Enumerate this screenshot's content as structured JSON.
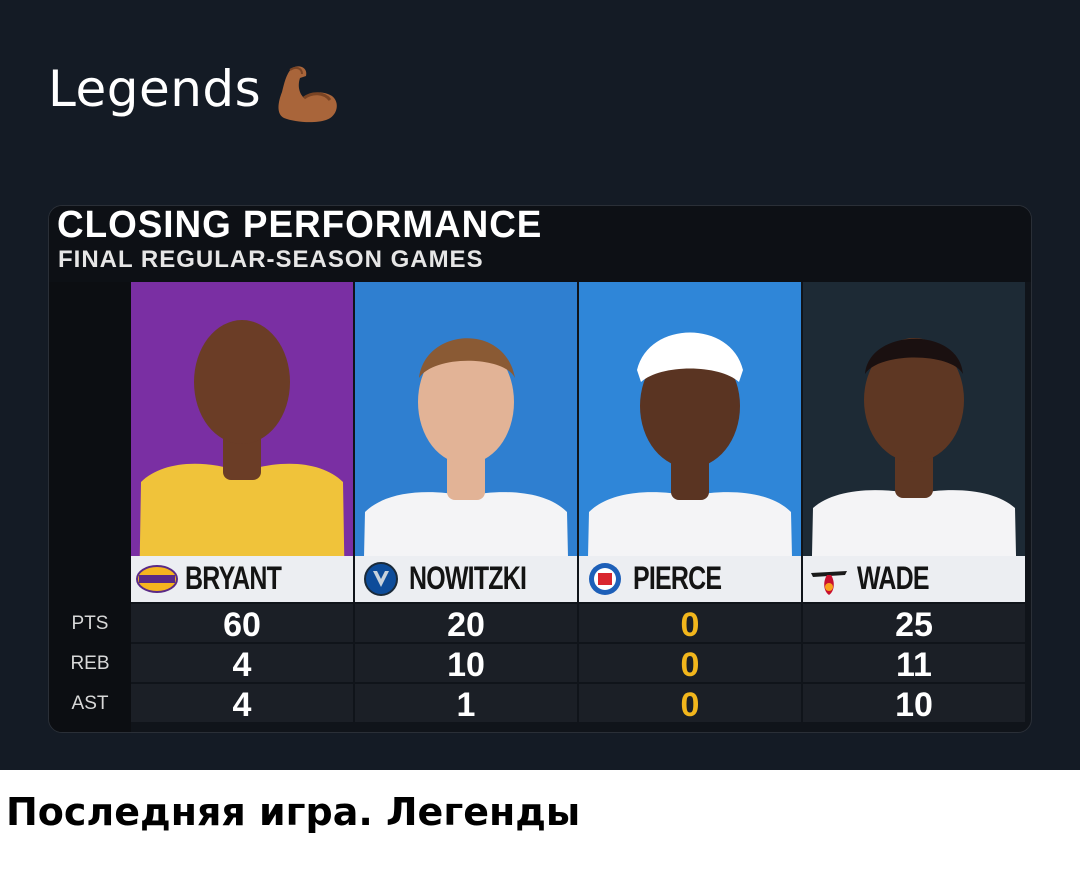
{
  "post": {
    "title": "Legends",
    "title_icon": "flexed-biceps-icon"
  },
  "graphic": {
    "title": "CLOSING PERFORMANCE",
    "subtitle": "FINAL REGULAR-SEASON GAMES",
    "stat_labels": [
      "PTS",
      "REB",
      "AST"
    ],
    "players": [
      {
        "name": "BRYANT",
        "team_logo": "lakers-logo-icon",
        "bg": "#7a2fa3",
        "jersey": "#f0c33a",
        "skin": "#6b3d26",
        "stats": [
          "60",
          "4",
          "4"
        ],
        "value_color": "#ffffff"
      },
      {
        "name": "NOWITZKI",
        "team_logo": "mavericks-logo-icon",
        "bg": "#2f7fd0",
        "jersey": "#f4f4f6",
        "skin": "#e2b396",
        "stats": [
          "20",
          "10",
          "1"
        ],
        "value_color": "#ffffff"
      },
      {
        "name": "PIERCE",
        "team_logo": "clippers-logo-icon",
        "bg": "#2f86d8",
        "jersey": "#f4f4f6",
        "skin": "#5a3422",
        "stats": [
          "0",
          "0",
          "0"
        ],
        "value_color": "#f2b61c"
      },
      {
        "name": "WADE",
        "team_logo": "heat-logo-icon",
        "bg": "#1d2a35",
        "jersey": "#f4f4f6",
        "skin": "#5e3723",
        "stats": [
          "25",
          "11",
          "10"
        ],
        "value_color": "#ffffff"
      }
    ]
  },
  "caption": "Последняя игра. Легенды"
}
